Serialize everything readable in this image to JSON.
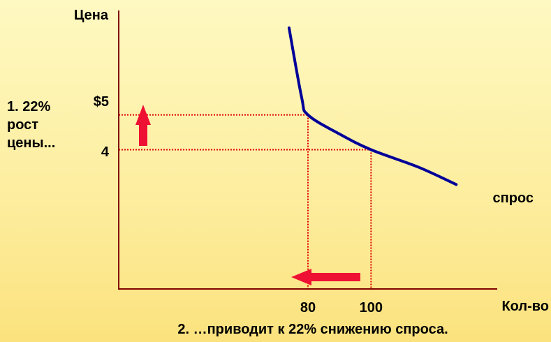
{
  "chart_data": {
    "type": "line",
    "title": "",
    "xlabel": "Кол-во",
    "ylabel": "Цена",
    "x_ticks": [
      "80",
      "100"
    ],
    "y_ticks": [
      "$5",
      "4"
    ],
    "xlim": [
      20,
      140
    ],
    "ylim": [
      0,
      8
    ],
    "series": [
      {
        "name": "спрос",
        "color": "#000099",
        "points": [
          [
            74,
            7.5
          ],
          [
            78,
            5.5
          ],
          [
            80,
            5
          ],
          [
            90,
            4.45
          ],
          [
            100,
            4
          ],
          [
            115,
            3.5
          ],
          [
            127,
            3
          ]
        ]
      }
    ],
    "reference_points": [
      {
        "x": 80,
        "y": 5
      },
      {
        "x": 100,
        "y": 4
      }
    ],
    "annotations": {
      "price_note": [
        "1.  22%",
        "рост",
        "цены..."
      ],
      "caption": "2. …приводит к 22% снижению спроса."
    },
    "arrows": [
      {
        "meaning": "price-up",
        "direction": "up",
        "color": "#ee1133"
      },
      {
        "meaning": "quantity-down",
        "direction": "left",
        "color": "#ee1133"
      }
    ],
    "colors": {
      "axis": "#800000",
      "guides": "#e00000",
      "curve": "#000099",
      "arrow": "#ee1133"
    }
  }
}
